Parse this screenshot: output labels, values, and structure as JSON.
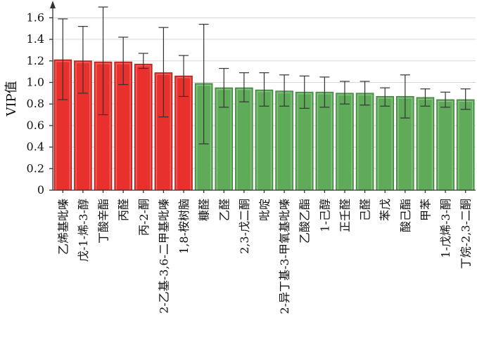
{
  "chart_data": {
    "type": "bar",
    "title": "",
    "xlabel": "",
    "ylabel": "VIP值",
    "ylim": [
      0,
      1.7
    ],
    "yticks": [
      "0",
      "0.2",
      "0.4",
      "0.6",
      "0.8",
      "1.0",
      "1.2",
      "1.4",
      "1.6"
    ],
    "grid": true,
    "colors": {
      "vip_above_1": "#e8302d",
      "vip_below_1": "#5fab5a",
      "vip_above_1_edge": "#a31f1c",
      "vip_below_1_edge": "#3d7a39"
    },
    "categories": [
      "乙烯基吡嗪",
      "戊-1-烯-3-醇",
      "丁酸辛酯",
      "丙醛",
      "丙-2-酮",
      "2-乙基-3,6-二甲基吡嗪",
      "1,8-桉树脑",
      "糠醛",
      "乙醛",
      "2,3-戊二酮",
      "吡啶",
      "2-异丁基-3-甲氧基吡嗪",
      "乙酸乙酯",
      "1-己醇",
      "正壬醛",
      "己醛",
      "苯戊",
      "酸己酯",
      "甲苯",
      "1-戊烯-3-酮",
      "丁烷-2,3-二酮"
    ],
    "values": [
      1.21,
      1.2,
      1.19,
      1.19,
      1.17,
      1.09,
      1.06,
      0.99,
      0.95,
      0.95,
      0.93,
      0.92,
      0.91,
      0.91,
      0.9,
      0.9,
      0.87,
      0.87,
      0.86,
      0.84,
      0.84
    ],
    "error_upper": [
      1.59,
      1.52,
      1.7,
      1.42,
      1.27,
      1.51,
      1.25,
      1.54,
      1.13,
      1.09,
      1.09,
      1.07,
      1.06,
      1.05,
      1.01,
      1.01,
      0.95,
      1.07,
      0.94,
      0.91,
      0.94
    ],
    "error_lower": [
      0.84,
      0.9,
      0.7,
      0.98,
      1.13,
      0.68,
      0.87,
      0.43,
      0.77,
      0.82,
      0.78,
      0.78,
      0.76,
      0.77,
      0.8,
      0.79,
      0.78,
      0.67,
      0.78,
      0.77,
      0.75
    ]
  }
}
